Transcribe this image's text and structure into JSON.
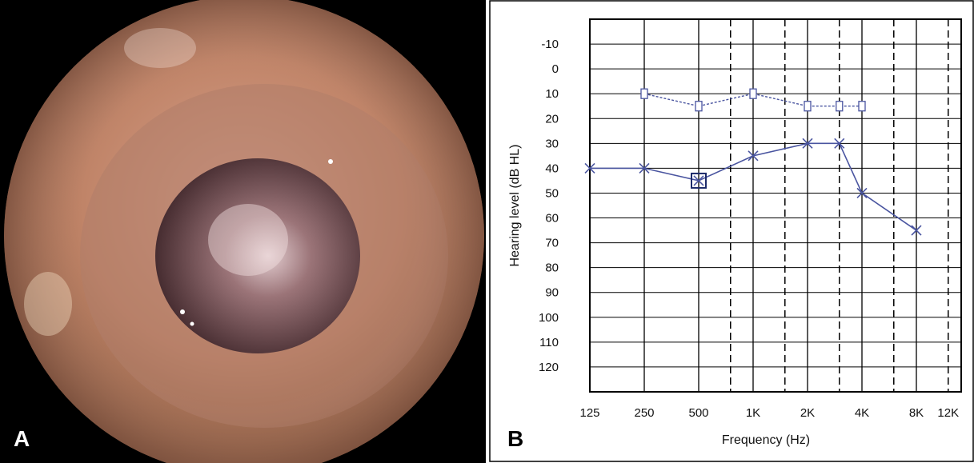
{
  "panels": {
    "a": {
      "letter": "A"
    },
    "b": {
      "letter": "B"
    }
  },
  "chart_data": {
    "type": "line",
    "title": "",
    "xlabel": "Frequency (Hz)",
    "ylabel": "Hearing level (dB HL)",
    "x_scale": "octave",
    "x_ticks": [
      {
        "label": "125",
        "hz": 125
      },
      {
        "label": "250",
        "hz": 250
      },
      {
        "label": "500",
        "hz": 500
      },
      {
        "label": "1K",
        "hz": 1000
      },
      {
        "label": "2K",
        "hz": 2000
      },
      {
        "label": "4K",
        "hz": 4000
      },
      {
        "label": "8K",
        "hz": 8000
      },
      {
        "label": "12K",
        "hz": 12000
      }
    ],
    "y_ticks": [
      -10,
      0,
      10,
      20,
      30,
      40,
      50,
      60,
      70,
      80,
      90,
      100,
      110,
      120
    ],
    "ylim": [
      -20,
      130
    ],
    "y_inverted": true,
    "grid": true,
    "dashed_gridlines_hz": [
      750,
      1500,
      3000,
      6000,
      12000
    ],
    "line_color": "#4a55a0",
    "series": [
      {
        "marker": "square",
        "line_style": "dashed",
        "points": [
          {
            "hz": 250,
            "db": 10
          },
          {
            "hz": 500,
            "db": 15
          },
          {
            "hz": 1000,
            "db": 10
          },
          {
            "hz": 2000,
            "db": 15
          },
          {
            "hz": 3000,
            "db": 15
          },
          {
            "hz": 4000,
            "db": 15
          }
        ]
      },
      {
        "marker": "cross",
        "line_style": "solid",
        "points": [
          {
            "hz": 125,
            "db": 40
          },
          {
            "hz": 250,
            "db": 40
          },
          {
            "hz": 500,
            "db": 45
          },
          {
            "hz": 1000,
            "db": 35
          },
          {
            "hz": 2000,
            "db": 30
          },
          {
            "hz": 3000,
            "db": 30
          },
          {
            "hz": 4000,
            "db": 50
          },
          {
            "hz": 8000,
            "db": 65
          }
        ]
      }
    ],
    "annotations": [
      {
        "marker": "large-square",
        "hz": 500,
        "db": 45
      }
    ]
  }
}
